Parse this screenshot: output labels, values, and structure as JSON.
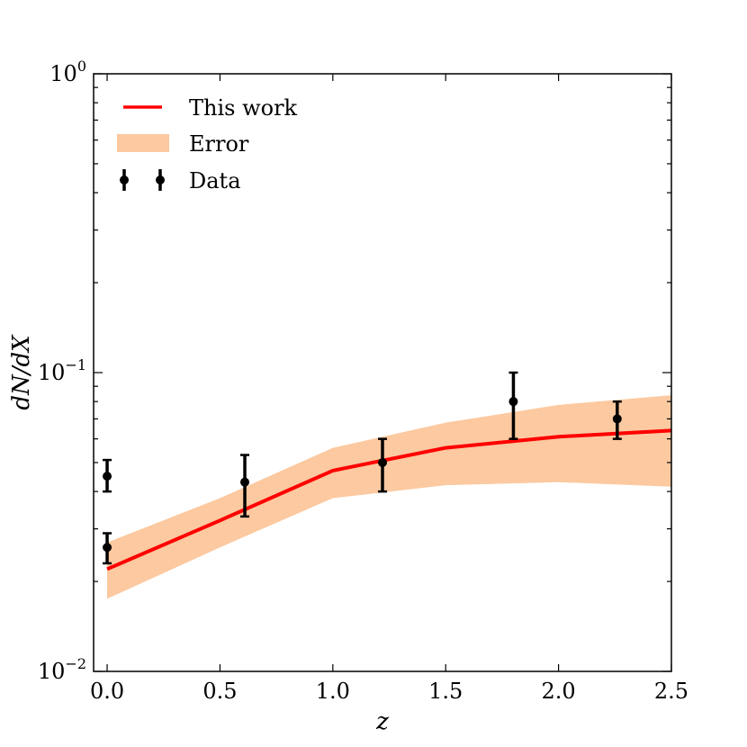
{
  "chart_data": {
    "type": "line",
    "title": "",
    "xlabel": "z",
    "ylabel": "dN/dX",
    "xlim": [
      -0.06,
      2.5
    ],
    "ylim": [
      0.01,
      1.0
    ],
    "yscale": "log",
    "xticks": [
      0.0,
      0.5,
      1.0,
      1.5,
      2.0,
      2.5
    ],
    "xtick_labels": [
      "0.0",
      "0.5",
      "1.0",
      "1.5",
      "2.0",
      "2.5"
    ],
    "yticks": [
      {
        "value": 1.0,
        "base": "10",
        "exp": "0"
      },
      {
        "value": 0.1,
        "base": "10",
        "exp": "−1"
      },
      {
        "value": 0.01,
        "base": "10",
        "exp": "−2"
      }
    ],
    "legend": {
      "position": "top-left",
      "entries": [
        {
          "label": "This work",
          "kind": "line",
          "color": "#ff0000"
        },
        {
          "label": "Error",
          "kind": "band",
          "color": "#fcc9a0"
        },
        {
          "label": "Data",
          "kind": "errorbar",
          "color": "#000000"
        }
      ]
    },
    "series": [
      {
        "name": "This work",
        "color": "#ff0000",
        "x": [
          0.0,
          0.5,
          1.0,
          1.5,
          2.0,
          2.5
        ],
        "y": [
          0.022,
          0.032,
          0.047,
          0.056,
          0.061,
          0.064
        ]
      }
    ],
    "band": {
      "name": "Error",
      "color": "#fcc9a0",
      "x": [
        0.0,
        0.5,
        1.0,
        1.5,
        2.0,
        2.5
      ],
      "lower": [
        0.0175,
        0.026,
        0.038,
        0.042,
        0.043,
        0.0415
      ],
      "upper": [
        0.027,
        0.038,
        0.056,
        0.068,
        0.078,
        0.084
      ]
    },
    "data_points": {
      "name": "Data",
      "color": "#000000",
      "points": [
        {
          "x": 0.0,
          "y": 0.045,
          "ylow": 0.04,
          "yhigh": 0.051
        },
        {
          "x": 0.0,
          "y": 0.026,
          "ylow": 0.023,
          "yhigh": 0.029
        },
        {
          "x": 0.61,
          "y": 0.043,
          "ylow": 0.033,
          "yhigh": 0.053
        },
        {
          "x": 1.22,
          "y": 0.05,
          "ylow": 0.04,
          "yhigh": 0.06
        },
        {
          "x": 1.8,
          "y": 0.08,
          "ylow": 0.06,
          "yhigh": 0.1
        },
        {
          "x": 2.26,
          "y": 0.07,
          "ylow": 0.06,
          "yhigh": 0.08
        }
      ]
    }
  }
}
